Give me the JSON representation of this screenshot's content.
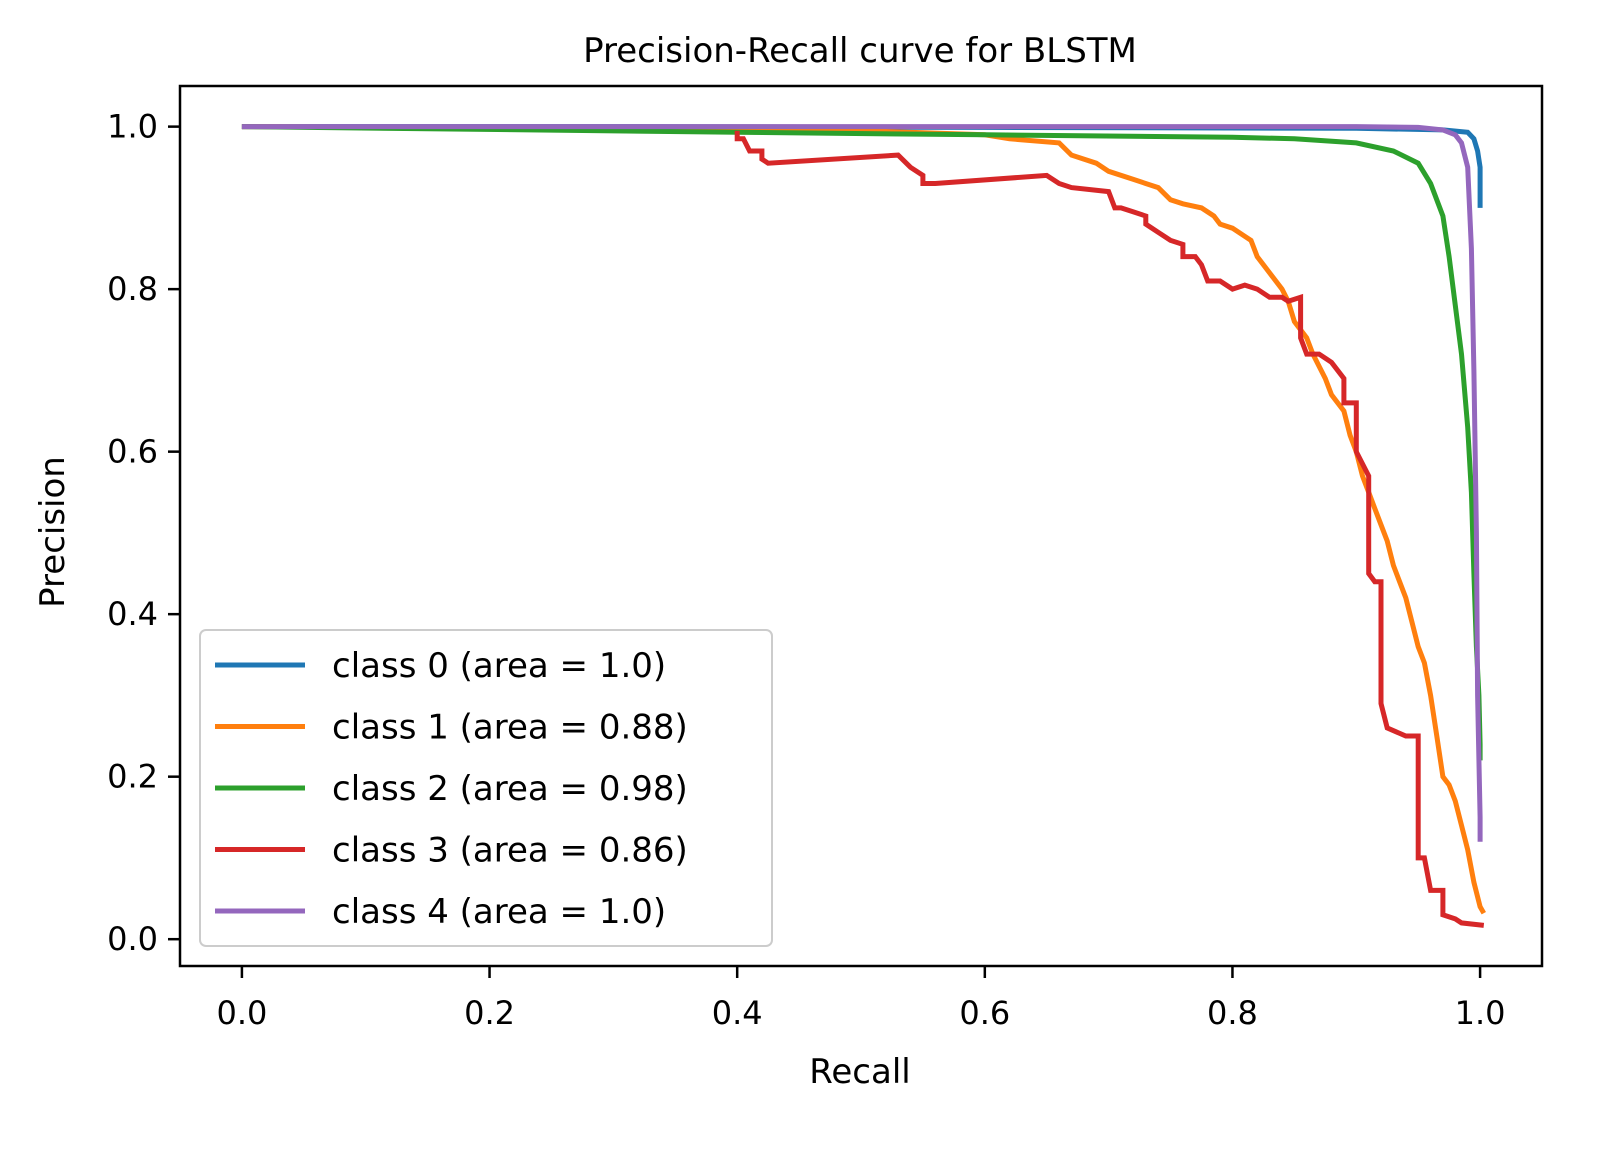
{
  "chart_data": {
    "type": "line",
    "title": "Precision-Recall curve for BLSTM",
    "xlabel": "Recall",
    "ylabel": "Precision",
    "xlim": [
      -0.05,
      1.05
    ],
    "ylim": [
      -0.033,
      1.05
    ],
    "xticks": [
      0.0,
      0.2,
      0.4,
      0.6,
      0.8,
      1.0
    ],
    "xtick_labels": [
      "0.0",
      "0.2",
      "0.4",
      "0.6",
      "0.8",
      "1.0"
    ],
    "yticks": [
      0.0,
      0.2,
      0.4,
      0.6,
      0.8,
      1.0
    ],
    "ytick_labels": [
      "0.0",
      "0.2",
      "0.4",
      "0.6",
      "0.8",
      "1.0"
    ],
    "legend_position": "lower-left",
    "grid": false,
    "series": [
      {
        "name": "class 0 (area = 1.0)",
        "color": "#1f77b4",
        "points": [
          [
            0.0,
            1.0
          ],
          [
            0.3,
            1.0
          ],
          [
            0.6,
            0.999
          ],
          [
            0.9,
            0.998
          ],
          [
            0.97,
            0.996
          ],
          [
            0.99,
            0.993
          ],
          [
            0.995,
            0.985
          ],
          [
            0.998,
            0.97
          ],
          [
            1.0,
            0.95
          ],
          [
            1.0,
            0.9
          ]
        ]
      },
      {
        "name": "class 1 (area = 0.88)",
        "color": "#ff7f0e",
        "points": [
          [
            0.0,
            1.0
          ],
          [
            0.3,
            0.998
          ],
          [
            0.5,
            0.995
          ],
          [
            0.6,
            0.99
          ],
          [
            0.62,
            0.985
          ],
          [
            0.66,
            0.98
          ],
          [
            0.67,
            0.965
          ],
          [
            0.69,
            0.955
          ],
          [
            0.7,
            0.945
          ],
          [
            0.72,
            0.935
          ],
          [
            0.74,
            0.925
          ],
          [
            0.75,
            0.91
          ],
          [
            0.76,
            0.905
          ],
          [
            0.775,
            0.9
          ],
          [
            0.785,
            0.89
          ],
          [
            0.79,
            0.88
          ],
          [
            0.8,
            0.875
          ],
          [
            0.81,
            0.865
          ],
          [
            0.815,
            0.86
          ],
          [
            0.82,
            0.84
          ],
          [
            0.825,
            0.83
          ],
          [
            0.83,
            0.82
          ],
          [
            0.84,
            0.8
          ],
          [
            0.845,
            0.785
          ],
          [
            0.85,
            0.76
          ],
          [
            0.86,
            0.74
          ],
          [
            0.865,
            0.72
          ],
          [
            0.875,
            0.69
          ],
          [
            0.88,
            0.67
          ],
          [
            0.89,
            0.65
          ],
          [
            0.895,
            0.62
          ],
          [
            0.9,
            0.6
          ],
          [
            0.905,
            0.57
          ],
          [
            0.91,
            0.55
          ],
          [
            0.915,
            0.53
          ],
          [
            0.92,
            0.51
          ],
          [
            0.925,
            0.49
          ],
          [
            0.93,
            0.46
          ],
          [
            0.935,
            0.44
          ],
          [
            0.94,
            0.42
          ],
          [
            0.945,
            0.39
          ],
          [
            0.95,
            0.36
          ],
          [
            0.955,
            0.34
          ],
          [
            0.96,
            0.3
          ],
          [
            0.965,
            0.25
          ],
          [
            0.97,
            0.2
          ],
          [
            0.975,
            0.19
          ],
          [
            0.98,
            0.17
          ],
          [
            0.985,
            0.14
          ],
          [
            0.99,
            0.11
          ],
          [
            0.995,
            0.07
          ],
          [
            1.0,
            0.04
          ],
          [
            1.003,
            0.032
          ]
        ]
      },
      {
        "name": "class 2 (area = 0.98)",
        "color": "#2ca02c",
        "points": [
          [
            0.0,
            1.0
          ],
          [
            0.4,
            0.993
          ],
          [
            0.6,
            0.99
          ],
          [
            0.8,
            0.987
          ],
          [
            0.85,
            0.985
          ],
          [
            0.9,
            0.98
          ],
          [
            0.93,
            0.97
          ],
          [
            0.95,
            0.955
          ],
          [
            0.96,
            0.93
          ],
          [
            0.97,
            0.89
          ],
          [
            0.975,
            0.84
          ],
          [
            0.98,
            0.78
          ],
          [
            0.985,
            0.72
          ],
          [
            0.99,
            0.63
          ],
          [
            0.993,
            0.55
          ],
          [
            0.995,
            0.45
          ],
          [
            0.997,
            0.36
          ],
          [
            0.999,
            0.3
          ],
          [
            1.0,
            0.24
          ],
          [
            1.0,
            0.22
          ]
        ]
      },
      {
        "name": "class 3 (area = 0.86)",
        "color": "#d62728",
        "points": [
          [
            0.4,
            0.995
          ],
          [
            0.4,
            0.985
          ],
          [
            0.405,
            0.985
          ],
          [
            0.41,
            0.97
          ],
          [
            0.42,
            0.97
          ],
          [
            0.42,
            0.96
          ],
          [
            0.425,
            0.955
          ],
          [
            0.53,
            0.965
          ],
          [
            0.54,
            0.95
          ],
          [
            0.55,
            0.94
          ],
          [
            0.55,
            0.93
          ],
          [
            0.56,
            0.93
          ],
          [
            0.65,
            0.94
          ],
          [
            0.66,
            0.93
          ],
          [
            0.67,
            0.925
          ],
          [
            0.7,
            0.92
          ],
          [
            0.705,
            0.9
          ],
          [
            0.71,
            0.9
          ],
          [
            0.72,
            0.895
          ],
          [
            0.73,
            0.89
          ],
          [
            0.73,
            0.88
          ],
          [
            0.74,
            0.87
          ],
          [
            0.75,
            0.86
          ],
          [
            0.76,
            0.855
          ],
          [
            0.76,
            0.84
          ],
          [
            0.77,
            0.84
          ],
          [
            0.775,
            0.83
          ],
          [
            0.78,
            0.81
          ],
          [
            0.79,
            0.81
          ],
          [
            0.8,
            0.8
          ],
          [
            0.81,
            0.805
          ],
          [
            0.82,
            0.8
          ],
          [
            0.83,
            0.79
          ],
          [
            0.84,
            0.79
          ],
          [
            0.845,
            0.785
          ],
          [
            0.855,
            0.79
          ],
          [
            0.855,
            0.74
          ],
          [
            0.86,
            0.72
          ],
          [
            0.87,
            0.72
          ],
          [
            0.875,
            0.715
          ],
          [
            0.88,
            0.71
          ],
          [
            0.89,
            0.69
          ],
          [
            0.89,
            0.66
          ],
          [
            0.9,
            0.66
          ],
          [
            0.9,
            0.6
          ],
          [
            0.91,
            0.57
          ],
          [
            0.91,
            0.45
          ],
          [
            0.915,
            0.44
          ],
          [
            0.92,
            0.44
          ],
          [
            0.92,
            0.29
          ],
          [
            0.925,
            0.26
          ],
          [
            0.94,
            0.25
          ],
          [
            0.95,
            0.25
          ],
          [
            0.95,
            0.1
          ],
          [
            0.955,
            0.1
          ],
          [
            0.96,
            0.06
          ],
          [
            0.97,
            0.06
          ],
          [
            0.97,
            0.03
          ],
          [
            0.98,
            0.025
          ],
          [
            0.985,
            0.02
          ],
          [
            1.003,
            0.017
          ]
        ]
      },
      {
        "name": "class 4 (area = 1.0)",
        "color": "#9467bd",
        "points": [
          [
            0.0,
            1.0
          ],
          [
            0.5,
            1.0
          ],
          [
            0.9,
            1.0
          ],
          [
            0.95,
            0.999
          ],
          [
            0.97,
            0.996
          ],
          [
            0.98,
            0.99
          ],
          [
            0.985,
            0.98
          ],
          [
            0.99,
            0.95
          ],
          [
            0.993,
            0.85
          ],
          [
            0.995,
            0.7
          ],
          [
            0.997,
            0.5
          ],
          [
            0.998,
            0.3
          ],
          [
            1.0,
            0.15
          ],
          [
            1.0,
            0.12
          ]
        ]
      }
    ]
  }
}
